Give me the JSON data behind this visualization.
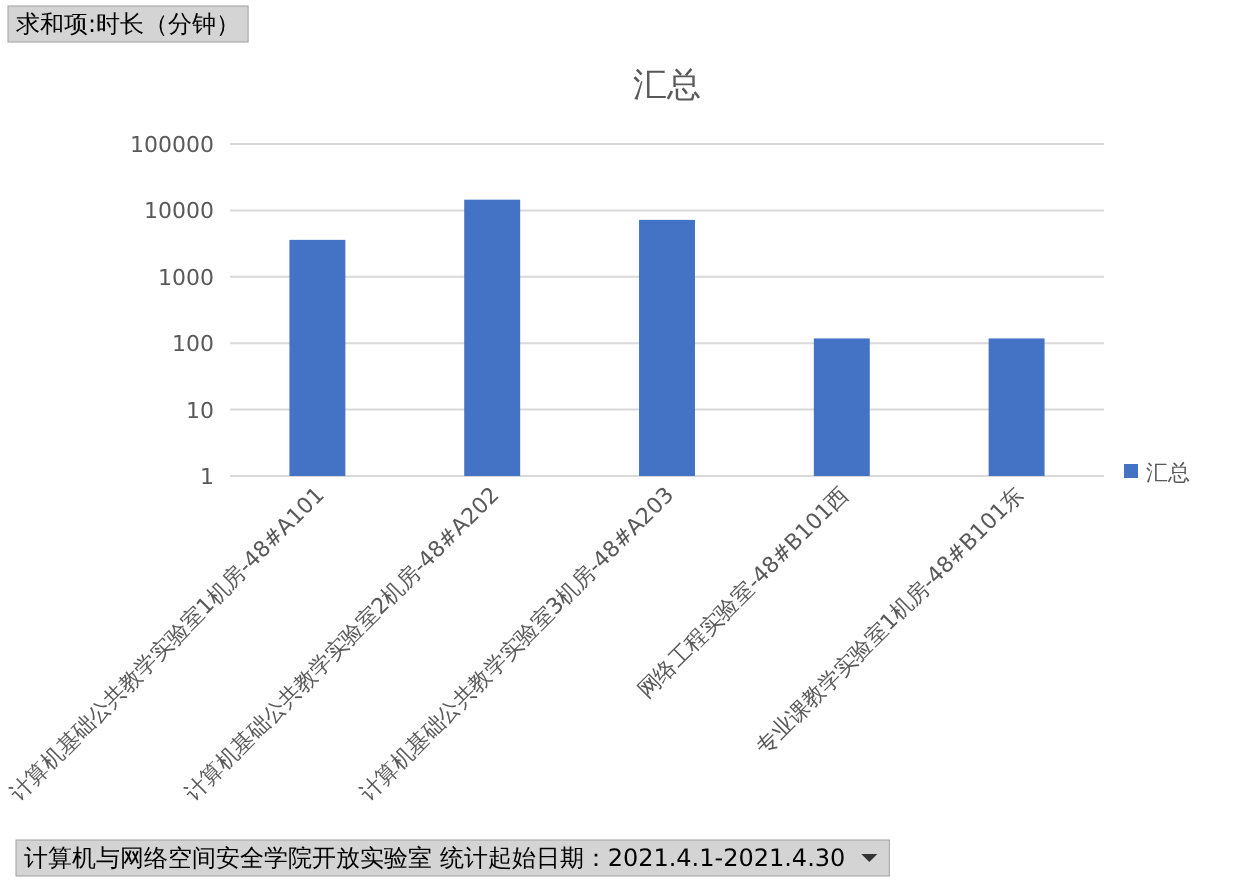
{
  "chart_data": {
    "type": "bar",
    "title": "汇总",
    "categories": [
      "计算机基础公共教学实验室1机房-48#A101",
      "计算机基础公共教学实验室2机房-48#A202",
      "计算机基础公共教学实验室3机房-48#A203",
      "网络工程实验室-48#B101西",
      "专业课教学实验室1机房-48#B101东"
    ],
    "series": [
      {
        "name": "汇总",
        "color": "#4472c4",
        "values": [
          3600,
          14500,
          7200,
          118,
          118
        ]
      }
    ],
    "log": true,
    "ylim": [
      1,
      100000
    ],
    "yticks": [
      1,
      10,
      100,
      1000,
      10000,
      100000
    ],
    "grid": "y",
    "legend": "right",
    "annotations": [
      "求和项:时长（分钟）",
      "计算机与网络空间安全学院开放实验室 统计起始日期：2021.4.1-2021.4.30"
    ]
  }
}
